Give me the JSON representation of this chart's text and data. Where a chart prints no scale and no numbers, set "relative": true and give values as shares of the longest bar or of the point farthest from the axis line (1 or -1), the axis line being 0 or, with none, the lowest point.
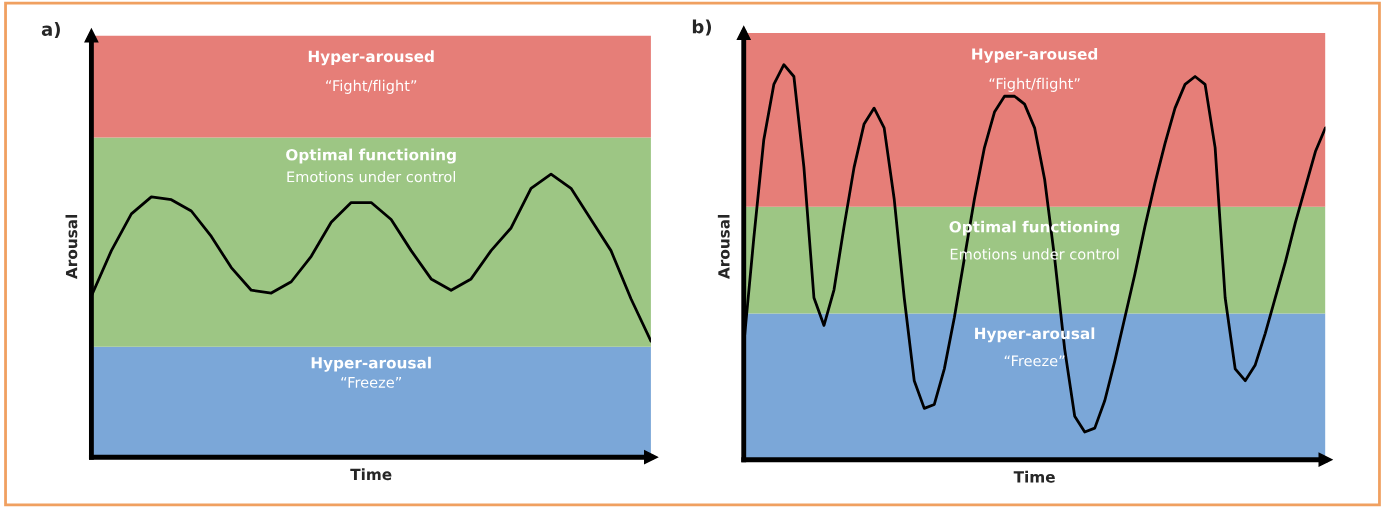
{
  "chart_data": [
    {
      "type": "line",
      "title": "a)",
      "xlabel": "Time",
      "ylabel": "Arousal",
      "relative": true,
      "categories": [
        null,
        null,
        null,
        null,
        null,
        null,
        null,
        null,
        null,
        null,
        null,
        null,
        null,
        null,
        null,
        null,
        null,
        null,
        null,
        null,
        null,
        null,
        null,
        null,
        null,
        null,
        null,
        null,
        null
      ],
      "series": [
        {
          "color": "#000000",
          "values": [
            0.57,
            0.73,
            0.86,
            0.92,
            0.91,
            0.87,
            0.78,
            0.67,
            0.59,
            0.58,
            0.62,
            0.71,
            0.83,
            0.9,
            0.9,
            0.84,
            0.73,
            0.63,
            0.59,
            0.63,
            0.73,
            0.81,
            0.95,
            1.0,
            0.95,
            0.84,
            0.73,
            0.56,
            0.41
          ]
        }
      ],
      "bands": [
        {
          "axis": "y",
          "from": 0,
          "to": 0.39,
          "label": "Hyper-arousal\n“Freeze”",
          "color": "#7ba7d8"
        },
        {
          "axis": "y",
          "from": 0.39,
          "to": 1.13,
          "label": "Optimal functioning\nEmotions under control",
          "color": "#9dc684"
        },
        {
          "axis": "y",
          "from": 1.13,
          "to": 1.49,
          "label": "Hyper-aroused\n“Fight/flight”",
          "color": "#e67e78"
        }
      ]
    },
    {
      "type": "line",
      "title": "b)",
      "xlabel": "Time",
      "ylabel": "Arousal",
      "relative": true,
      "categories": [
        null,
        null,
        null,
        null,
        null,
        null,
        null,
        null,
        null,
        null,
        null,
        null,
        null,
        null,
        null,
        null,
        null,
        null,
        null,
        null,
        null,
        null,
        null,
        null,
        null,
        null,
        null,
        null,
        null,
        null,
        null,
        null,
        null,
        null,
        null,
        null,
        null,
        null,
        null,
        null,
        null,
        null,
        null,
        null,
        null,
        null,
        null,
        null,
        null,
        null,
        null,
        null,
        null,
        null,
        null,
        null,
        null,
        null,
        null
      ],
      "series": [
        {
          "color": "#000000",
          "values": [
            0.29,
            0.56,
            0.81,
            0.95,
            1.0,
            0.97,
            0.74,
            0.41,
            0.34,
            0.43,
            0.59,
            0.74,
            0.85,
            0.89,
            0.84,
            0.66,
            0.41,
            0.2,
            0.13,
            0.14,
            0.23,
            0.36,
            0.51,
            0.66,
            0.79,
            0.88,
            0.92,
            0.92,
            0.9,
            0.84,
            0.71,
            0.51,
            0.28,
            0.11,
            0.07,
            0.08,
            0.15,
            0.25,
            0.36,
            0.47,
            0.59,
            0.7,
            0.8,
            0.89,
            0.95,
            0.97,
            0.95,
            0.79,
            0.41,
            0.23,
            0.2,
            0.24,
            0.32,
            0.41,
            0.5,
            0.6,
            0.69,
            0.78,
            0.84
          ]
        }
      ],
      "bands": [
        {
          "axis": "y",
          "from": 0,
          "to": 0.37,
          "label": "Hyper-arousal\n“Freeze”",
          "color": "#7ba7d8"
        },
        {
          "axis": "y",
          "from": 0.37,
          "to": 0.64,
          "label": "Optimal functioning\nEmotions under control",
          "color": "#9dc684"
        },
        {
          "axis": "y",
          "from": 0.64,
          "to": 1.08,
          "label": "Hyper-aroused\n“Fight/flight”",
          "color": "#e67e78"
        }
      ]
    }
  ]
}
